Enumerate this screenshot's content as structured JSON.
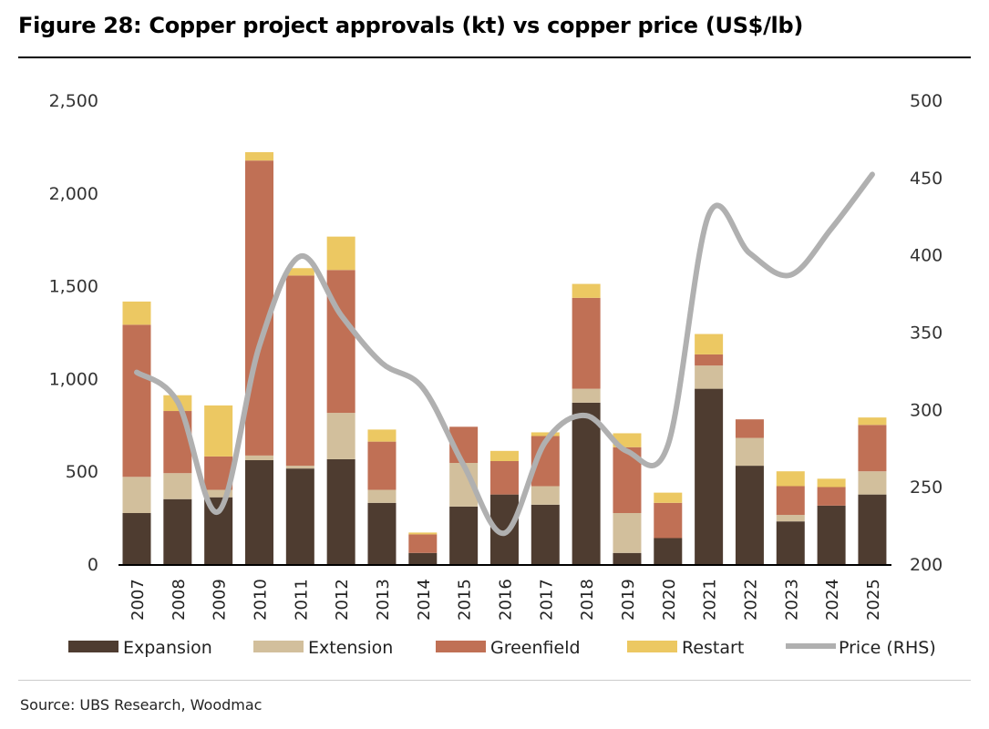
{
  "title": "Figure 28: Copper project approvals (kt) vs copper price (US$/lb)",
  "source": "Source: UBS Research, Woodmac",
  "chart_data": {
    "type": "bar",
    "stacked": true,
    "title": "Figure 28: Copper project approvals (kt) vs copper price (US$/lb)",
    "categories": [
      "2007",
      "2008",
      "2009",
      "2010",
      "2011",
      "2012",
      "2013",
      "2014",
      "2015",
      "2016",
      "2017",
      "2018",
      "2019",
      "2020",
      "2021",
      "2022",
      "2023",
      "2024",
      "2025"
    ],
    "series": [
      {
        "name": "Expansion",
        "color": "#4e3c30",
        "values": [
          275,
          350,
          360,
          560,
          515,
          565,
          330,
          60,
          310,
          375,
          320,
          870,
          60,
          140,
          945,
          530,
          230,
          315,
          375
        ]
      },
      {
        "name": "Extension",
        "color": "#d2bf9c",
        "values": [
          195,
          140,
          40,
          25,
          15,
          250,
          70,
          0,
          235,
          0,
          100,
          75,
          215,
          0,
          125,
          150,
          35,
          0,
          125
        ]
      },
      {
        "name": "Greenfield",
        "color": "#c07055",
        "values": [
          820,
          335,
          180,
          1590,
          1025,
          770,
          260,
          100,
          195,
          180,
          270,
          490,
          355,
          190,
          60,
          100,
          155,
          100,
          250
        ]
      },
      {
        "name": "Restart",
        "color": "#ecc862",
        "values": [
          125,
          85,
          275,
          45,
          40,
          180,
          65,
          10,
          0,
          55,
          20,
          75,
          75,
          55,
          110,
          0,
          80,
          45,
          40
        ]
      }
    ],
    "line_series": {
      "name": "Price (RHS)",
      "color": "#b0b0b0",
      "axis": "right",
      "values": [
        324,
        305,
        234,
        341,
        399,
        361,
        330,
        314,
        264,
        220,
        279,
        296,
        273,
        277,
        426,
        401,
        387,
        417,
        452
      ]
    },
    "ylim": [
      0,
      2500
    ],
    "yticks": [
      "0",
      "500",
      "1,000",
      "1,500",
      "2,000",
      "2,500"
    ],
    "y2lim": [
      200,
      500
    ],
    "y2ticks": [
      "200",
      "250",
      "300",
      "350",
      "400",
      "450",
      "500"
    ],
    "grid": false,
    "legend": "bottom"
  }
}
